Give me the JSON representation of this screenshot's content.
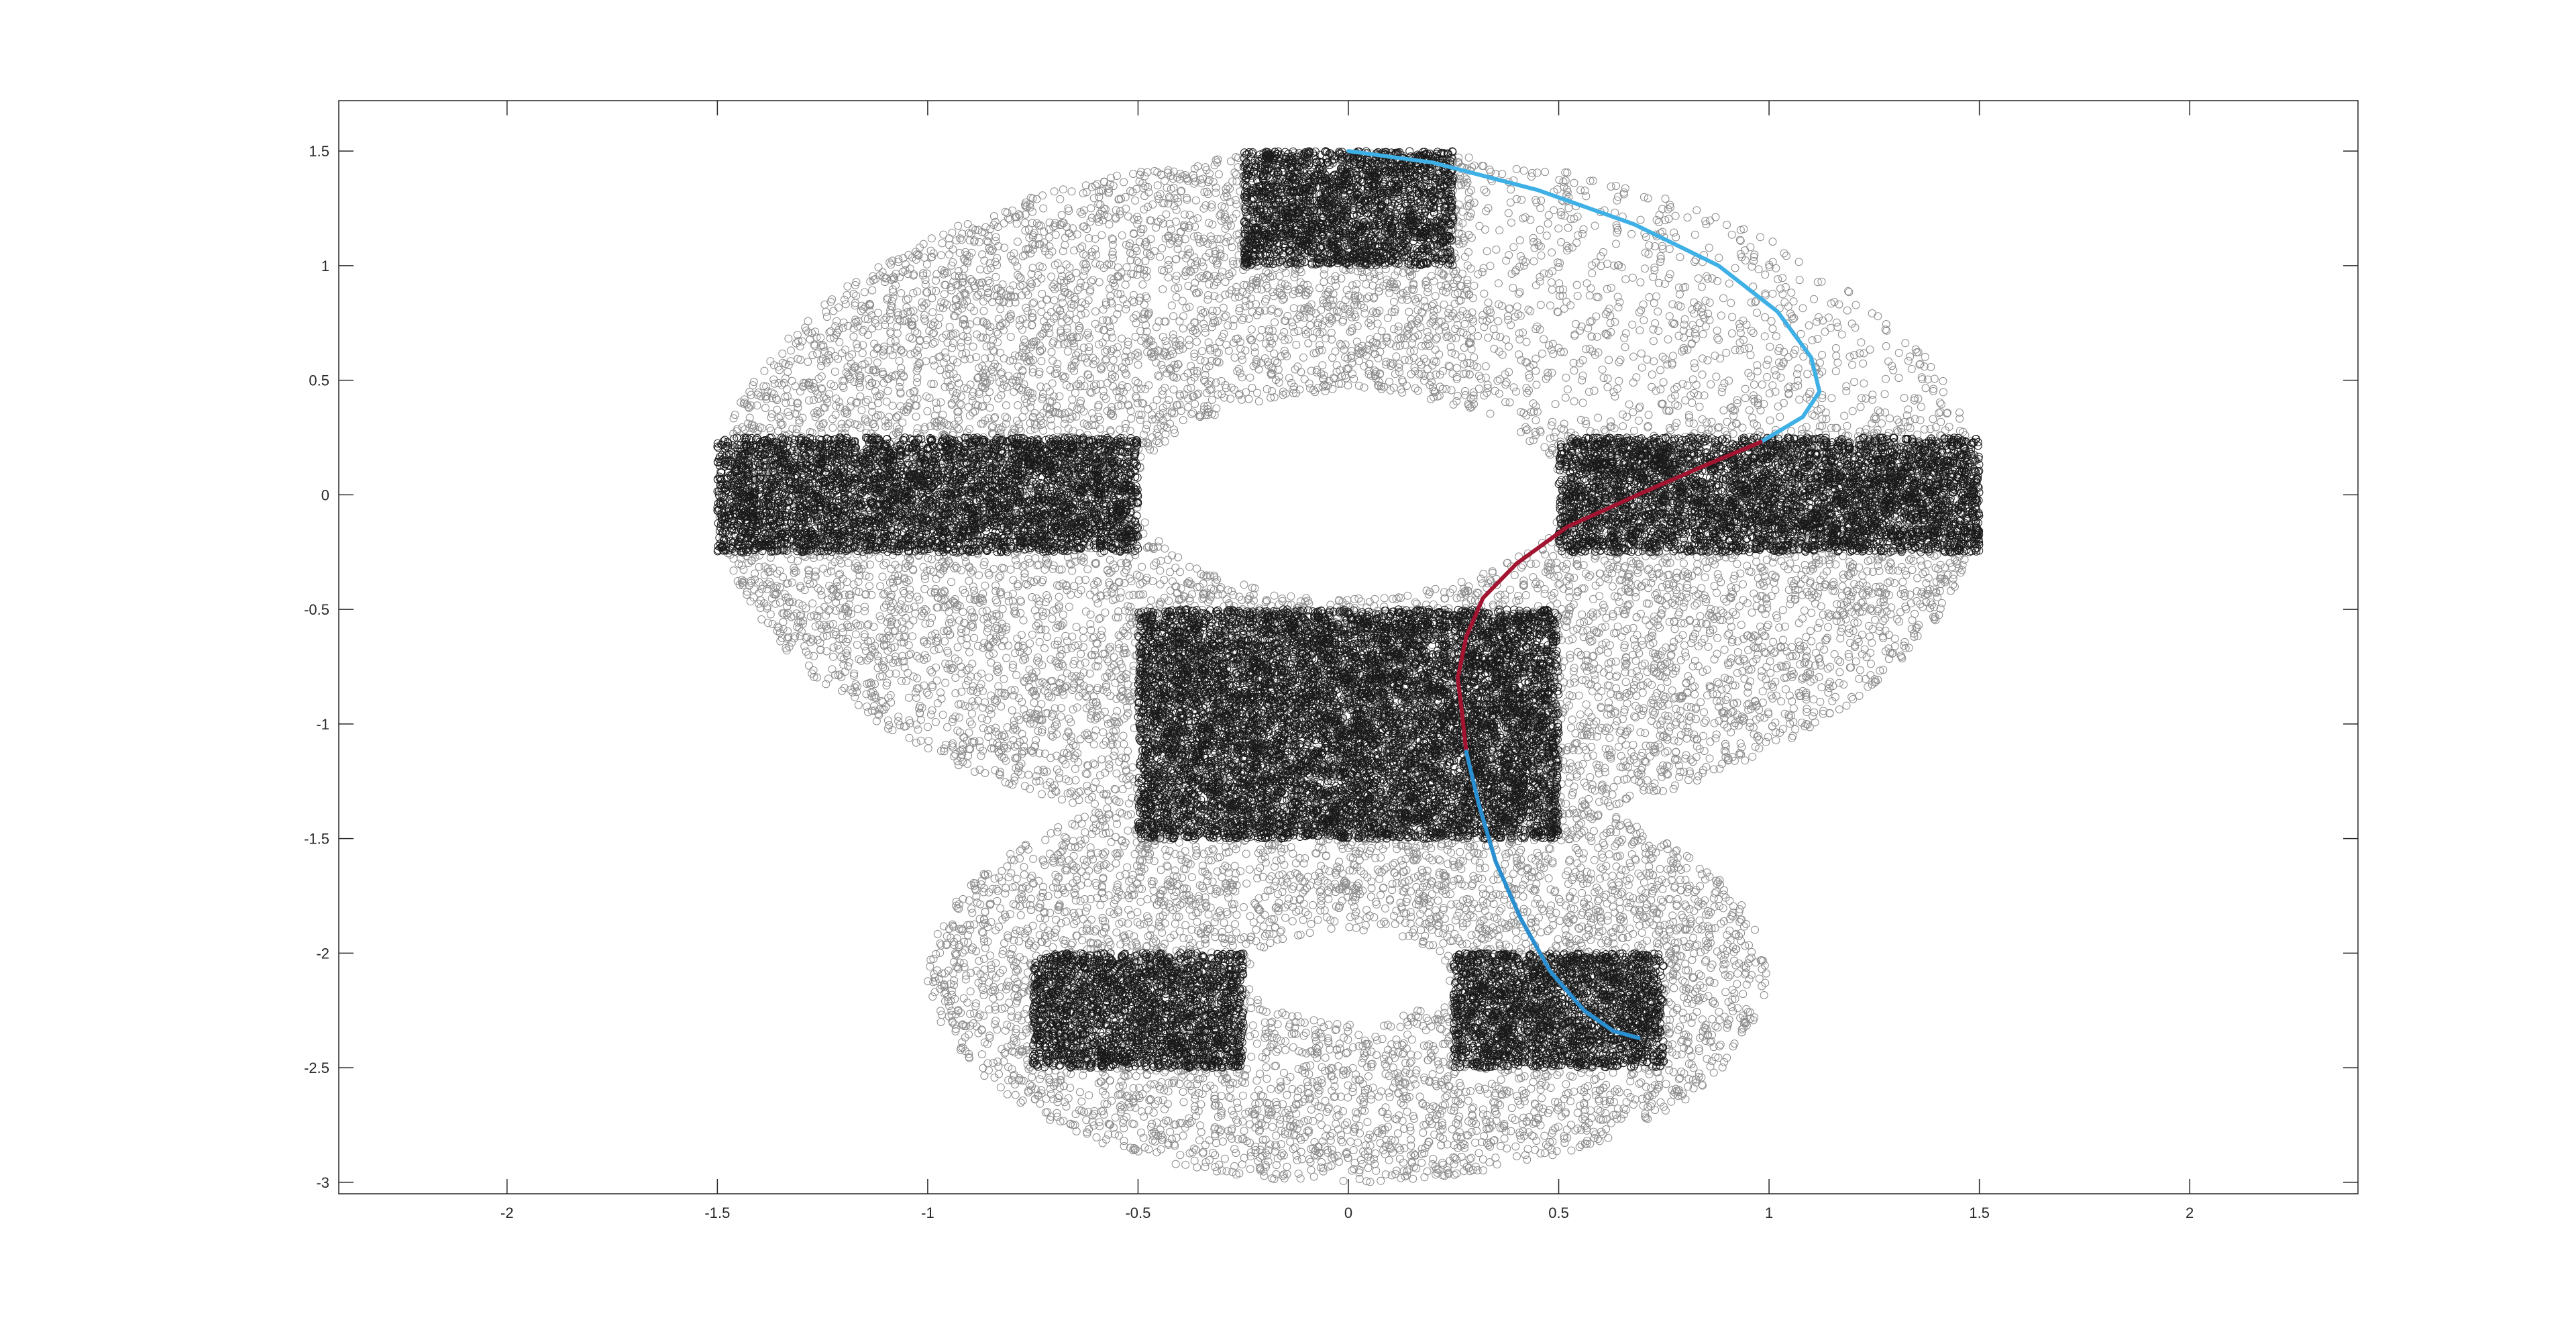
{
  "chart_data": {
    "type": "scatter",
    "title": "",
    "xlabel": "",
    "ylabel": "",
    "xlim": [
      -2.4,
      2.4
    ],
    "ylim": [
      -3.05,
      1.72
    ],
    "x_ticks": [
      -2,
      -1.5,
      -1,
      -0.5,
      0,
      0.5,
      1,
      1.5,
      2
    ],
    "x_tick_labels": [
      "-2",
      "-1.5",
      "-1",
      "-0.5",
      "0",
      "0.5",
      "1",
      "1.5",
      "2"
    ],
    "y_ticks": [
      1.5,
      1,
      0.5,
      0,
      -0.5,
      -1,
      -1.5,
      -2,
      -2.5,
      -3
    ],
    "y_tick_labels": [
      "1.5",
      "1",
      "0.5",
      "0",
      "-0.5",
      "-1",
      "-1.5",
      "-2",
      "-2.5",
      "-3"
    ],
    "grid": false,
    "marker": "open circle",
    "colors": {
      "background": "#ffffff",
      "axes_frame": "#262626",
      "free_samples": "#8c8c8c",
      "region_samples": "#1a1a1a",
      "path_upper": "#3fb0e6",
      "path_middle": "#a2142f",
      "path_lower": "#2a8fd0"
    },
    "sample_regions": {
      "upper_ring": {
        "center": [
          0,
          0
        ],
        "outer_radii": [
          1.5,
          1.5
        ],
        "inner_radii": [
          0.5,
          0.45
        ]
      },
      "lower_ring": {
        "center": [
          0,
          -2.1
        ],
        "outer_radii": [
          1.0,
          0.9
        ],
        "inner_radii": [
          0.24,
          0.2
        ]
      },
      "dense_rectangles": [
        {
          "name": "top",
          "x": [
            -0.25,
            0.25
          ],
          "y": [
            1.0,
            1.5
          ]
        },
        {
          "name": "left",
          "x": [
            -1.5,
            -0.5
          ],
          "y": [
            -0.25,
            0.25
          ]
        },
        {
          "name": "right",
          "x": [
            0.5,
            1.5
          ],
          "y": [
            -0.25,
            0.25
          ]
        },
        {
          "name": "center",
          "x": [
            -0.5,
            0.5
          ],
          "y": [
            -1.5,
            -0.5
          ]
        },
        {
          "name": "bottom-left",
          "x": [
            -0.75,
            -0.25
          ],
          "y": [
            -2.5,
            -2.0
          ]
        },
        {
          "name": "bottom-right",
          "x": [
            0.25,
            0.75
          ],
          "y": [
            -2.5,
            -2.0
          ]
        }
      ]
    },
    "series": [
      {
        "color": "#3fb0e6",
        "x": [
          0.0,
          0.2,
          0.45,
          0.68,
          0.88,
          1.02,
          1.1,
          1.12,
          1.08,
          0.98
        ],
        "y": [
          1.5,
          1.45,
          1.33,
          1.18,
          1.0,
          0.8,
          0.6,
          0.45,
          0.34,
          0.23
        ]
      },
      {
        "color": "#a2142f",
        "x": [
          0.98,
          0.85,
          0.7,
          0.52,
          0.4,
          0.32,
          0.28,
          0.26,
          0.27,
          0.28
        ],
        "y": [
          0.23,
          0.13,
          0.01,
          -0.14,
          -0.3,
          -0.45,
          -0.62,
          -0.8,
          -0.95,
          -1.12
        ]
      },
      {
        "color": "#2a8fd0",
        "x": [
          0.28,
          0.31,
          0.35,
          0.41,
          0.48,
          0.56,
          0.63,
          0.69
        ],
        "y": [
          -1.12,
          -1.35,
          -1.6,
          -1.85,
          -2.08,
          -2.25,
          -2.34,
          -2.37
        ]
      }
    ]
  }
}
